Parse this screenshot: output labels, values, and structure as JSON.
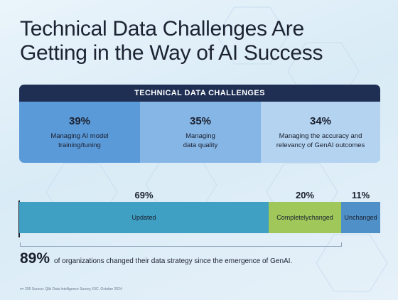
{
  "title": "Technical Data Challenges Are Getting in the Way of AI Success",
  "panel": {
    "header": "TECHNICAL DATA CHALLENGES",
    "cells": [
      {
        "pct": "39%",
        "label_line1": "Managing AI model",
        "label_line2": "training/tuning"
      },
      {
        "pct": "35%",
        "label_line1": "Managing",
        "label_line2": "data quality"
      },
      {
        "pct": "34%",
        "label_line1": "Managing the accuracy and",
        "label_line2": "relevancy of GenAI outcomes"
      }
    ]
  },
  "chart_data": {
    "type": "bar",
    "stacked": true,
    "orientation": "horizontal",
    "series": [
      {
        "name": "Updated",
        "value": 69,
        "label": "69%",
        "color": "#3fa0c3"
      },
      {
        "name": "Completely changed",
        "value": 20,
        "label": "20%",
        "color": "#9fc75a"
      },
      {
        "name": "Unchanged",
        "value": 11,
        "label": "11%",
        "color": "#4f90c8"
      }
    ],
    "segment_labels": [
      [
        "Updated"
      ],
      [
        "Completely",
        "changed"
      ],
      [
        "Unchanged"
      ]
    ]
  },
  "summary": {
    "pct": "89%",
    "text": "of organizations changed their data strategy since the emergence of GenAI."
  },
  "footnote": "n= 205 Source: Qlik Data Intelligence Survey, IDC, October 2024"
}
